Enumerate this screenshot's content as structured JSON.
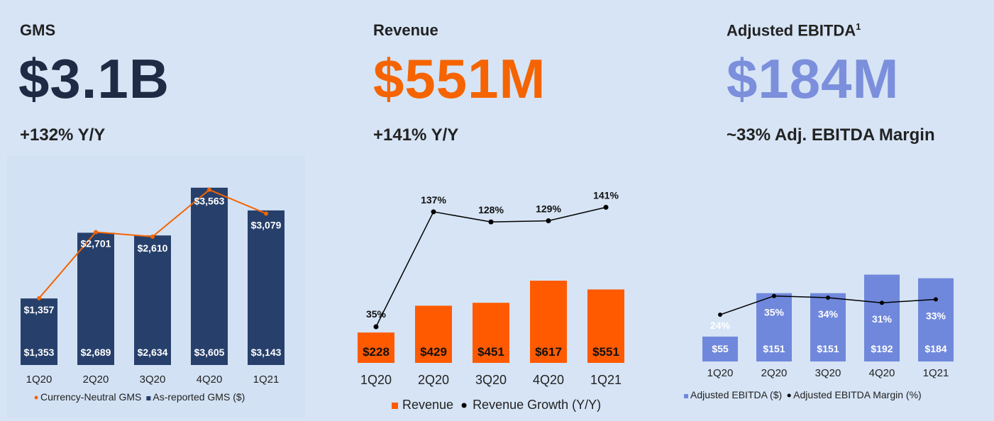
{
  "panels": {
    "gms": {
      "title": "GMS",
      "big": "$3.1B",
      "sub": "+132% Y/Y",
      "big_color": "#1f2a44"
    },
    "revenue": {
      "title": "Revenue",
      "big": "$551M",
      "sub": "+141% Y/Y",
      "big_color": "#f56400"
    },
    "ebitda": {
      "title": "Adjusted EBITDA",
      "title_sup": "1",
      "big": "$184M",
      "sub": "~33% Adj. EBITDA Margin",
      "big_color": "#7b8fdc"
    }
  },
  "chart_data": [
    {
      "type": "bar",
      "categories": [
        "1Q20",
        "2Q20",
        "3Q20",
        "4Q20",
        "1Q21"
      ],
      "series": [
        {
          "name": "As-reported GMS ($)",
          "kind": "bar",
          "values": [
            1353,
            2689,
            2634,
            3605,
            3143
          ],
          "labels": [
            "$1,353",
            "$2,689",
            "$2,634",
            "$3,605",
            "$3,143"
          ],
          "color": "#27406b"
        },
        {
          "name": "Currency-Neutral GMS",
          "kind": "line",
          "values": [
            1357,
            2701,
            2610,
            3563,
            3079
          ],
          "labels": [
            "$1,357",
            "$2,701",
            "$2,610",
            "$3,563",
            "$3,079"
          ],
          "color": "#f56400"
        }
      ],
      "legend": "bottom"
    },
    {
      "type": "bar",
      "categories": [
        "1Q20",
        "2Q20",
        "3Q20",
        "4Q20",
        "1Q21"
      ],
      "series": [
        {
          "name": "Revenue",
          "kind": "bar",
          "values": [
            228,
            429,
            451,
            617,
            551
          ],
          "labels": [
            "$228",
            "$429",
            "$451",
            "$617",
            "$551"
          ],
          "color": "#ff5a00"
        },
        {
          "name": "Revenue Growth (Y/Y)",
          "kind": "line",
          "values": [
            35,
            137,
            128,
            129,
            141
          ],
          "labels": [
            "35%",
            "137%",
            "128%",
            "129%",
            "141%"
          ],
          "color": "#000000"
        }
      ],
      "legend": "bottom"
    },
    {
      "type": "bar",
      "categories": [
        "1Q20",
        "2Q20",
        "3Q20",
        "4Q20",
        "1Q21"
      ],
      "series": [
        {
          "name": "Adjusted EBITDA ($)",
          "kind": "bar",
          "values": [
            55,
            151,
            151,
            192,
            184
          ],
          "labels": [
            "$55",
            "$151",
            "$151",
            "$192",
            "$184"
          ],
          "color": "#7088db"
        },
        {
          "name": "Adjusted EBITDA Margin (%)",
          "kind": "line",
          "values": [
            24,
            35,
            34,
            31,
            33
          ],
          "labels": [
            "24%",
            "35%",
            "34%",
            "31%",
            "33%"
          ],
          "color": "#000000"
        }
      ],
      "legend": "bottom"
    }
  ]
}
